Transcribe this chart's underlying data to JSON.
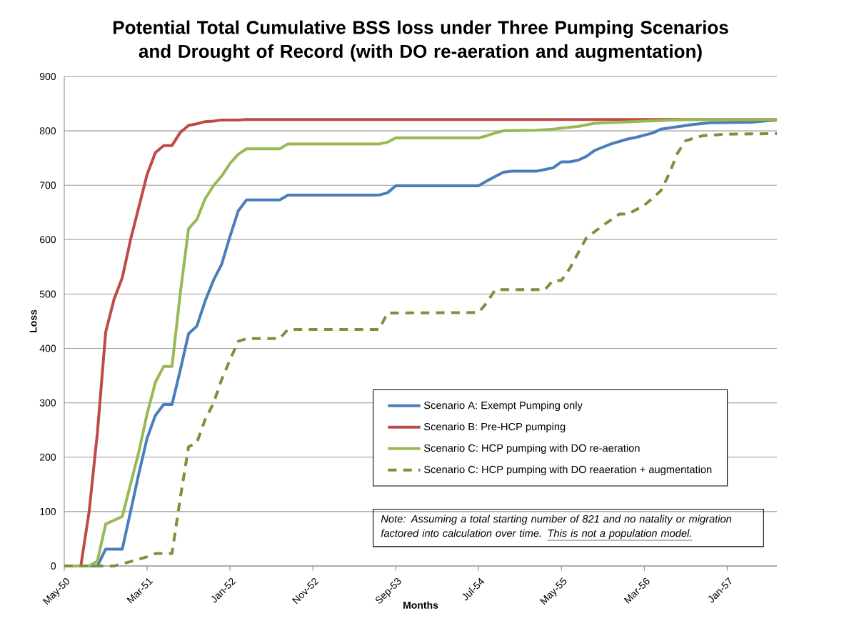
{
  "chart_data": {
    "type": "line",
    "title": "Potential Total Cumulative BSS loss under Three Pumping Scenarios and Drought of Record (with DO re-aeration and augmentation)",
    "xlabel": "Months",
    "ylabel": "Loss",
    "xlim": [
      "1950-05",
      "1957-07"
    ],
    "xticks": [
      {
        "value": "1950-05",
        "label": "May-50"
      },
      {
        "value": "1951-03",
        "label": "Mar-51"
      },
      {
        "value": "1952-01",
        "label": "Jan-52"
      },
      {
        "value": "1952-11",
        "label": "Nov-52"
      },
      {
        "value": "1953-09",
        "label": "Sep-53"
      },
      {
        "value": "1954-07",
        "label": "Jul-54"
      },
      {
        "value": "1955-05",
        "label": "May-55"
      },
      {
        "value": "1956-03",
        "label": "Mar-56"
      },
      {
        "value": "1957-01",
        "label": "Jan-57"
      }
    ],
    "ylim": [
      0,
      900
    ],
    "yticks": [
      0,
      100,
      200,
      300,
      400,
      500,
      600,
      700,
      800,
      900
    ],
    "grid": "y",
    "legend": "bottom right",
    "annotations": [
      "Note: Assuming a total starting number of 821 and no natality or migration factored into calculation over time.",
      "This is not a population model."
    ],
    "series": [
      {
        "name": "Scenario A: Exempt Pumping only",
        "color": "#4a7ebb",
        "x": [
          "1950-05",
          "1950-09",
          "1950-10",
          "1950-12",
          "1951-01",
          "1951-02",
          "1951-03",
          "1951-04",
          "1951-05",
          "1951-06",
          "1951-07",
          "1951-08",
          "1951-09",
          "1951-10",
          "1951-11",
          "1951-12",
          "1952-01",
          "1952-02",
          "1952-03",
          "1952-07",
          "1952-08",
          "1953-07",
          "1953-08",
          "1953-09",
          "1954-07",
          "1954-08",
          "1954-09",
          "1954-10",
          "1954-11",
          "1955-02",
          "1955-04",
          "1955-05",
          "1955-06",
          "1955-07",
          "1955-08",
          "1955-09",
          "1955-11",
          "1956-01",
          "1956-02",
          "1956-04",
          "1956-05",
          "1956-09",
          "1956-11",
          "1957-04",
          "1957-06",
          "1957-07"
        ],
        "values": [
          0,
          0,
          31,
          31,
          100,
          170,
          235,
          277,
          297,
          297,
          360,
          427,
          441,
          487,
          525,
          555,
          606,
          653,
          673,
          673,
          682,
          682,
          686,
          699,
          699,
          708,
          716,
          724,
          726,
          726,
          732,
          743,
          743,
          746,
          753,
          764,
          776,
          785,
          788,
          796,
          803,
          812,
          815,
          816,
          819,
          820
        ]
      },
      {
        "name": "Scenario B: Pre-HCP pumping",
        "color": "#be4b48",
        "x": [
          "1950-05",
          "1950-07",
          "1950-08",
          "1950-09",
          "1950-10",
          "1950-11",
          "1950-12",
          "1951-01",
          "1951-02",
          "1951-03",
          "1951-04",
          "1951-05",
          "1951-06",
          "1951-07",
          "1951-08",
          "1951-09",
          "1951-10",
          "1951-11",
          "1951-12",
          "1952-02",
          "1952-03",
          "1957-07"
        ],
        "values": [
          0,
          0,
          100,
          245,
          430,
          490,
          530,
          600,
          660,
          720,
          760,
          773,
          773,
          797,
          810,
          813,
          817,
          818,
          820,
          820,
          821,
          821
        ]
      },
      {
        "name": "Scenario C: HCP pumping with DO re-aeration",
        "color": "#98b954",
        "x": [
          "1950-05",
          "1950-08",
          "1950-09",
          "1950-10",
          "1950-12",
          "1951-02",
          "1951-03",
          "1951-04",
          "1951-05",
          "1951-06",
          "1951-07",
          "1951-08",
          "1951-09",
          "1951-10",
          "1951-11",
          "1951-12",
          "1952-01",
          "1952-02",
          "1952-03",
          "1952-07",
          "1952-08",
          "1953-07",
          "1953-08",
          "1953-09",
          "1954-07",
          "1954-08",
          "1954-09",
          "1954-10",
          "1955-02",
          "1955-04",
          "1955-05",
          "1955-07",
          "1955-09",
          "1955-12",
          "1956-03",
          "1956-05",
          "1956-08",
          "1957-07"
        ],
        "values": [
          0,
          0,
          9,
          77,
          91,
          210,
          280,
          338,
          367,
          367,
          501,
          620,
          637,
          675,
          699,
          717,
          740,
          757,
          767,
          767,
          776,
          776,
          779,
          787,
          787,
          791,
          796,
          800,
          801,
          803,
          805,
          808,
          814,
          816,
          818,
          819,
          821,
          821
        ]
      },
      {
        "name": "Scenario C: HCP pumping with DO reaeration + augmentation",
        "color": "#77933c",
        "line_style": "dashed",
        "x": [
          "1950-05",
          "1950-11",
          "1951-01",
          "1951-03",
          "1951-04",
          "1951-06",
          "1951-07",
          "1951-08",
          "1951-09",
          "1951-10",
          "1951-11",
          "1951-12",
          "1952-01",
          "1952-02",
          "1952-03",
          "1952-07",
          "1952-08",
          "1953-07",
          "1953-08",
          "1954-07",
          "1954-08",
          "1954-09",
          "1955-03",
          "1955-04",
          "1955-05",
          "1955-06",
          "1955-08",
          "1955-10",
          "1955-12",
          "1956-01",
          "1956-03",
          "1956-05",
          "1956-06",
          "1956-07",
          "1956-08",
          "1956-10",
          "1957-01",
          "1957-07"
        ],
        "values": [
          0,
          0,
          8,
          17,
          23,
          23,
          125,
          219,
          227,
          269,
          299,
          343,
          379,
          413,
          418,
          418,
          435,
          435,
          465,
          466,
          484,
          508,
          508,
          525,
          525,
          547,
          603,
          626,
          647,
          647,
          663,
          690,
          721,
          759,
          782,
          791,
          794,
          795
        ]
      }
    ]
  }
}
